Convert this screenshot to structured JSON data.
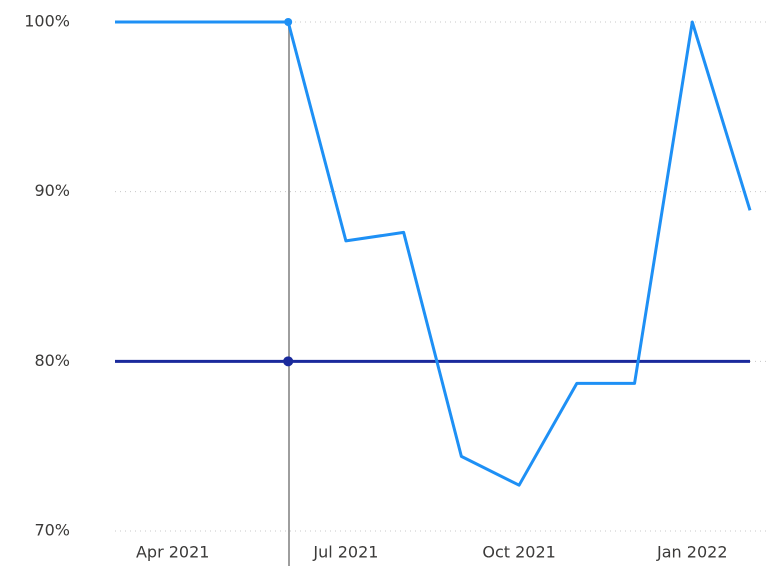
{
  "chart_data": {
    "type": "line",
    "x": [
      "2021-03",
      "2021-04",
      "2021-05",
      "2021-06",
      "2021-07",
      "2021-08",
      "2021-09",
      "2021-10",
      "2021-11",
      "2021-12",
      "2022-01",
      "2022-02"
    ],
    "series": [
      {
        "color": "#1e90f5",
        "values": [
          100,
          100,
          100,
          100,
          87.1,
          87.6,
          74.4,
          72.7,
          78.7,
          78.7,
          100,
          88.9
        ]
      },
      {
        "color": "#1a2a9c",
        "values": [
          80,
          80,
          80,
          80,
          80,
          80,
          80,
          80,
          80,
          80,
          80,
          80
        ]
      }
    ],
    "ylim": [
      70,
      100
    ],
    "yticks": [
      {
        "value": 70,
        "label": "70%"
      },
      {
        "value": 80,
        "label": "80%"
      },
      {
        "value": 90,
        "label": "90%"
      },
      {
        "value": 100,
        "label": "100%"
      }
    ],
    "xticks": [
      {
        "value": "2021-04",
        "label": "Apr 2021"
      },
      {
        "value": "2021-07",
        "label": "Jul 2021"
      },
      {
        "value": "2021-10",
        "label": "Oct 2021"
      },
      {
        "value": "2022-01",
        "label": "Jan 2022"
      }
    ],
    "grid": true
  }
}
